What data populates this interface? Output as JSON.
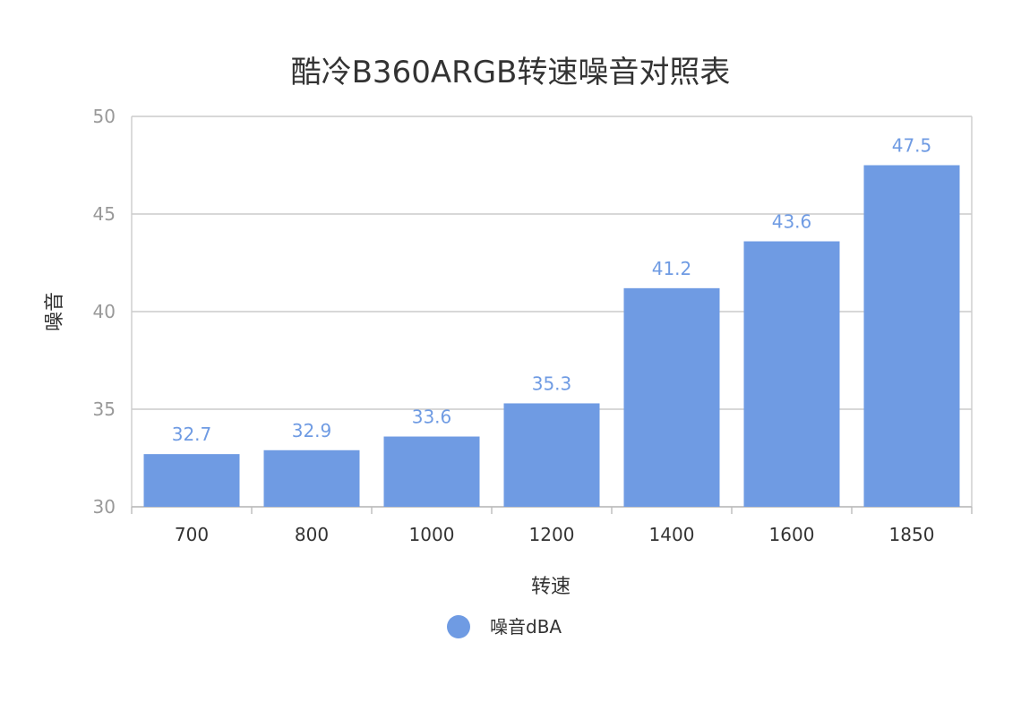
{
  "chart_data": {
    "type": "bar",
    "title": "酷冷B360ARGB转速噪音对照表",
    "xlabel": "转速",
    "ylabel": "噪音",
    "categories": [
      "700",
      "800",
      "1000",
      "1200",
      "1400",
      "1600",
      "1850"
    ],
    "series": [
      {
        "name": "噪音dBA",
        "values": [
          32.7,
          32.9,
          33.6,
          35.3,
          41.2,
          43.6,
          47.5
        ],
        "color": "#6f9be3"
      }
    ],
    "ylim": [
      30,
      50
    ],
    "yticks": [
      "30",
      "35",
      "40",
      "45",
      "50"
    ],
    "grid": true,
    "legend": "bottom-center",
    "data_labels": [
      "32.7",
      "32.9",
      "33.6",
      "35.3",
      "41.2",
      "43.6",
      "47.5"
    ]
  }
}
